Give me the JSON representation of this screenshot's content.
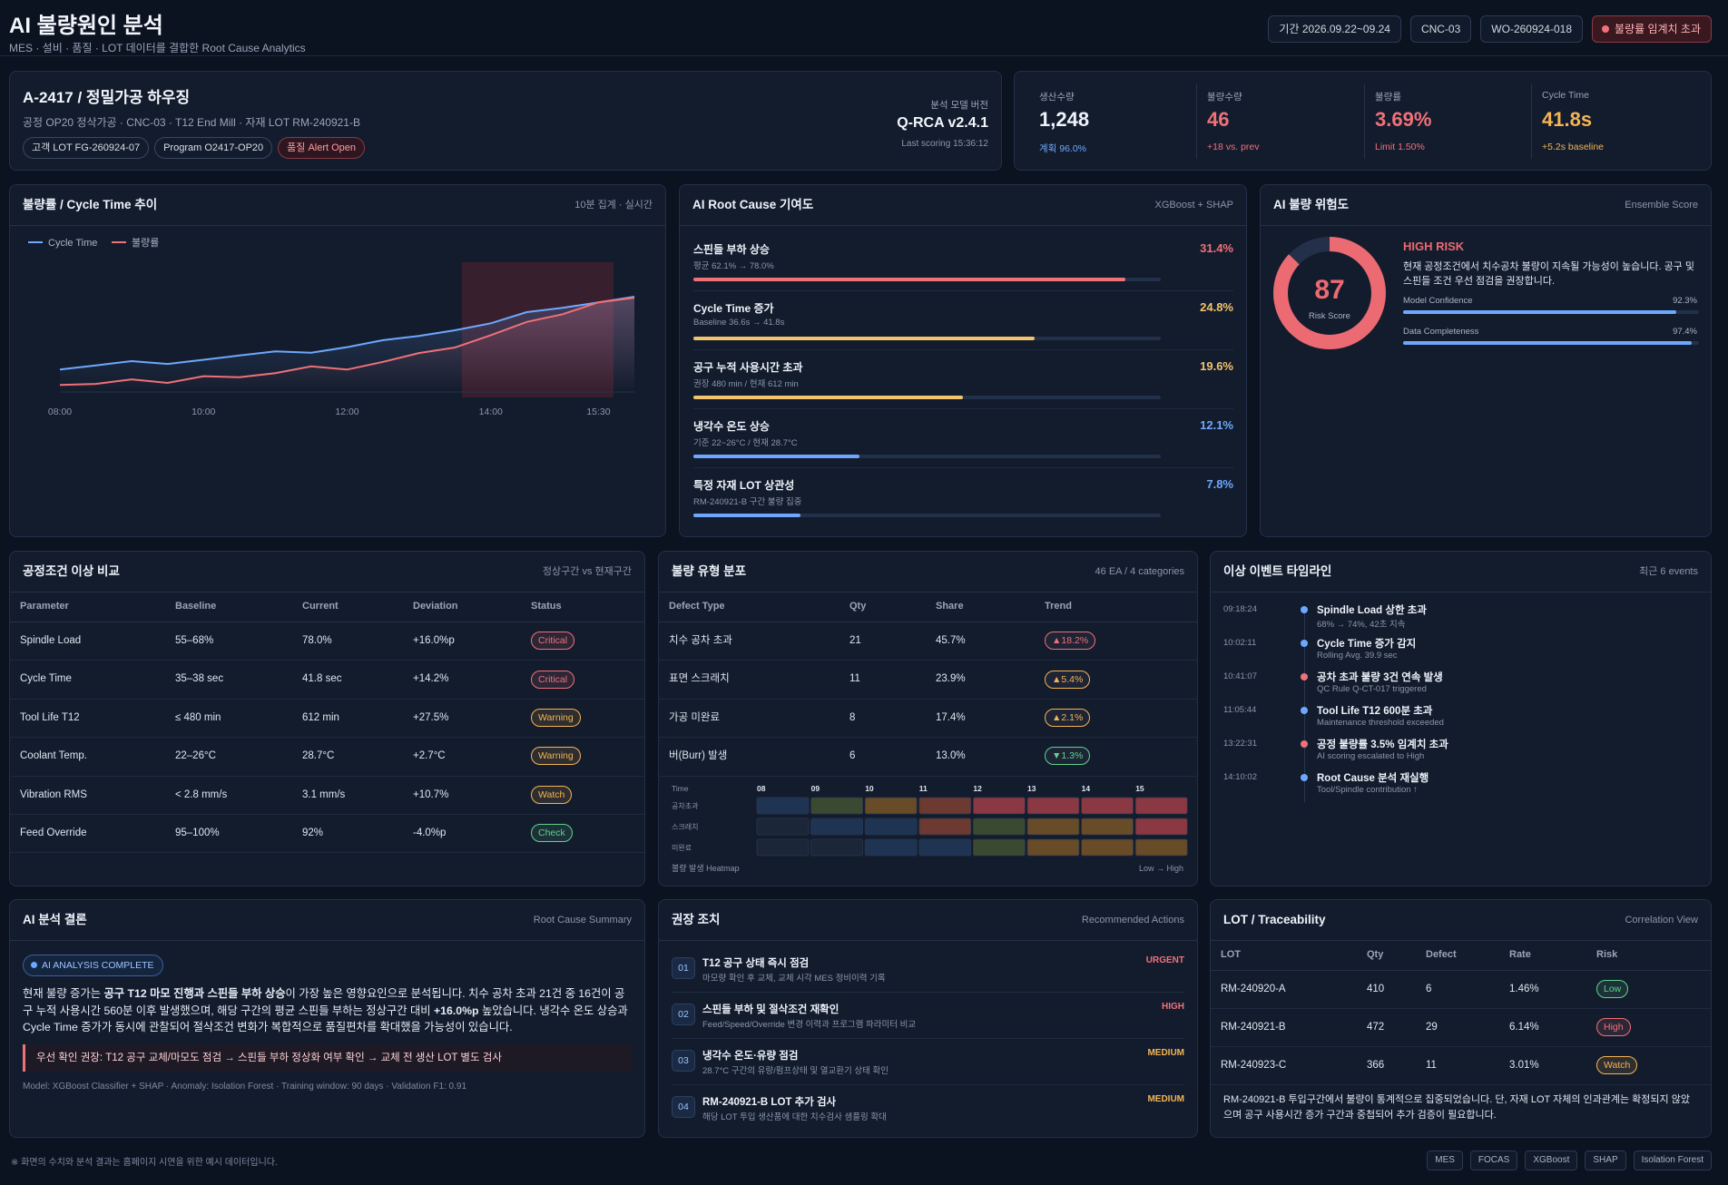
{
  "header": {
    "title": "AI 불량원인 분석",
    "subtitle": "MES · 설비 · 품질 · LOT 데이터를 결합한 Root Cause Analytics",
    "chips": [
      "기간 2026.09.22~09.24",
      "CNC-03",
      "WO-260924-018"
    ],
    "alert": "불량률 임계치 초과"
  },
  "product": {
    "title": "A-2417 / 정밀가공 하우징",
    "meta": "공정 OP20 정삭가공 · CNC-03 · T12 End Mill · 자재 LOT RM-240921-B",
    "tags": [
      "고객 LOT FG-260924-07",
      "Program O2417-OP20"
    ],
    "alert_tag": "품질 Alert Open",
    "model_label": "분석 모델 버전",
    "model": "Q-RCA v2.4.1",
    "scoring": "Last scoring 15:36:12"
  },
  "kpis": [
    {
      "label": "생산수량",
      "value": "1,248",
      "note": "계획 96.0%",
      "value_color": "#eef3fb",
      "note_color": "#6ea8fe"
    },
    {
      "label": "불량수량",
      "value": "46",
      "note": "+18 vs. prev",
      "value_color": "#f07178",
      "note_color": "#f07178"
    },
    {
      "label": "불량률",
      "value": "3.69%",
      "note": "Limit 1.50%",
      "value_color": "#f07178",
      "note_color": "#f07178"
    },
    {
      "label": "Cycle Time",
      "value": "41.8s",
      "note": "+5.2s baseline",
      "value_color": "#f5b453",
      "note_color": "#f5b453"
    }
  ],
  "chart_data": [
    {
      "type": "line",
      "title": "불량률 / Cycle Time 추이",
      "subtitle": "10분 집계 · 실시간",
      "categories": [
        "08:00",
        null,
        null,
        null,
        "10:00",
        null,
        null,
        null,
        "12:00",
        null,
        null,
        null,
        "14:00",
        null,
        null,
        "15:30",
        null
      ],
      "series": [
        {
          "name": "Cycle Time",
          "color": "#6ea8fe",
          "values": [
            36.6,
            36.9,
            37.2,
            37.0,
            37.3,
            37.6,
            37.9,
            37.8,
            38.2,
            38.7,
            39.0,
            39.4,
            39.9,
            40.7,
            41.0,
            41.4,
            41.8
          ]
        },
        {
          "name": "불량률",
          "color": "#f07178",
          "axis": "y2",
          "values": [
            1.2,
            1.23,
            1.36,
            1.26,
            1.45,
            1.42,
            1.54,
            1.73,
            1.64,
            1.86,
            2.11,
            2.27,
            2.62,
            3.0,
            3.22,
            3.56,
            3.69
          ]
        }
      ],
      "ylim": [
        35,
        44
      ],
      "y2lim": [
        1,
        4.6
      ],
      "legend": "top-left"
    },
    {
      "type": "bar",
      "orientation": "horizontal",
      "title": "AI Root Cause 기여도",
      "subtitle": "XGBoost + SHAP",
      "categories": [
        "스핀들 부하 상승",
        "Cycle Time 증가",
        "공구 누적 사용시간 초과",
        "냉각수 온도 상승",
        "특정 자재 LOT 상관성"
      ],
      "details": [
        "평균 62.1% → 78.0%",
        "Baseline 36.6s → 41.8s",
        "권장 480 min / 현재 612 min",
        "기준 22~26°C / 현재 28.7°C",
        "RM-240921-B 구간 불량 집중"
      ],
      "values": [
        31.4,
        24.8,
        19.6,
        12.1,
        7.8
      ],
      "value_labels": [
        "31.4%",
        "24.8%",
        "19.6%",
        "12.1%",
        "7.8%"
      ],
      "colors": [
        "#f07178",
        "#f2c46d",
        "#f2c46d",
        "#6ea8fe",
        "#6ea8fe"
      ],
      "xlim": [
        0,
        34
      ]
    },
    {
      "type": "gauge",
      "title": "AI 불량 위험도",
      "subtitle": "Ensemble Score",
      "value": 87,
      "label": "Risk Score",
      "ylim": [
        0,
        100
      ],
      "color": "#ec6a72",
      "level": "HIGH RISK",
      "description": "현재 공정조건에서 치수공차 불량이 지속될 가능성이 높습니다. 공구 및 스핀들 조건 우선 점검을 권장합니다.",
      "categories": [
        "Model Confidence",
        "Data Completeness"
      ],
      "values": [
        92.3,
        97.4
      ],
      "value_labels": [
        "92.3%",
        "97.4%"
      ],
      "xlim": [
        0,
        100
      ],
      "bar_color": "#6ea8fe"
    },
    {
      "type": "heatmap",
      "x_label": "Time",
      "categories": [
        "08",
        "09",
        "10",
        "11",
        "12",
        "13",
        "14",
        "15"
      ],
      "rows": [
        "공차초과",
        "스크래치",
        "미완료"
      ],
      "values": [
        [
          1,
          2,
          3,
          4,
          5,
          5,
          5,
          5
        ],
        [
          0,
          1,
          1,
          4,
          2,
          3,
          3,
          5
        ],
        [
          0,
          0,
          1,
          1,
          2,
          3,
          3,
          3
        ]
      ],
      "colors": [
        "#1b2638",
        "#1e3452",
        "#394a30",
        "#684b27",
        "#6c3a31",
        "#8a3841"
      ],
      "caption": "불량 발생 Heatmap",
      "scale_label": "Low → High"
    }
  ],
  "process": {
    "title": "공정조건 이상 비교",
    "note": "정상구간 vs 현재구간",
    "columns": [
      "Parameter",
      "Baseline",
      "Current",
      "Deviation",
      "Status"
    ],
    "rows": [
      [
        "Spindle Load",
        "55–68%",
        "78.0%",
        "+16.0%p",
        "Critical"
      ],
      [
        "Cycle Time",
        "35–38 sec",
        "41.8 sec",
        "+14.2%",
        "Critical"
      ],
      [
        "Tool Life T12",
        "≤ 480 min",
        "612 min",
        "+27.5%",
        "Warning"
      ],
      [
        "Coolant Temp.",
        "22–26°C",
        "28.7°C",
        "+2.7°C",
        "Warning"
      ],
      [
        "Vibration RMS",
        "< 2.8 mm/s",
        "3.1 mm/s",
        "+10.7%",
        "Watch"
      ],
      [
        "Feed Override",
        "95–100%",
        "92%",
        "-4.0%p",
        "Check"
      ]
    ]
  },
  "defects": {
    "title": "불량 유형 분포",
    "note": "46 EA / 4 categories",
    "columns": [
      "Defect Type",
      "Qty",
      "Share",
      "Trend"
    ],
    "rows": [
      [
        "치수 공차 초과",
        "21",
        "45.7%",
        "▲18.2%"
      ],
      [
        "표면 스크래치",
        "11",
        "23.9%",
        "▲5.4%"
      ],
      [
        "가공 미완료",
        "8",
        "17.4%",
        "▲2.1%"
      ],
      [
        "버(Burr) 발생",
        "6",
        "13.0%",
        "▼1.3%"
      ]
    ],
    "trend_colors": [
      "#f07178",
      "#f5b453",
      "#f5b453",
      "#5fd38d"
    ]
  },
  "timeline": {
    "title": "이상 이벤트 타임라인",
    "note": "최근 6 events",
    "events": [
      {
        "time": "09:18:24",
        "title": "Spindle Load 상한 초과",
        "detail": "68% → 74%, 42초 지속",
        "color": "#6ea8fe"
      },
      {
        "time": "10:02:11",
        "title": "Cycle Time 증가 감지",
        "detail": "Rolling Avg. 39.9 sec",
        "color": "#6ea8fe"
      },
      {
        "time": "10:41:07",
        "title": "공차 초과 불량 3건 연속 발생",
        "detail": "QC Rule Q-CT-017 triggered",
        "color": "#f07178"
      },
      {
        "time": "11:05:44",
        "title": "Tool Life T12 600분 초과",
        "detail": "Maintenance threshold exceeded",
        "color": "#6ea8fe"
      },
      {
        "time": "13:22:31",
        "title": "공정 불량률 3.5% 임계치 초과",
        "detail": "AI scoring escalated to High",
        "color": "#f07178"
      },
      {
        "time": "14:10:02",
        "title": "Root Cause 분석 재실행",
        "detail": "Tool/Spindle contribution ↑",
        "color": "#6ea8fe"
      }
    ]
  },
  "conclusion": {
    "title": "AI 분석 결론",
    "note": "Root Cause Summary",
    "badge": "AI ANALYSIS COMPLETE",
    "body": [
      "현재 불량 증가는 ",
      "공구 T12 마모 진행과 스핀들 부하 상승",
      "이 가장 높은 영향요인으로 분석됩니다. 치수 공차 초과 21건 중 16건이 공구 누적 사용시간 560분 이후 발생했으며, 해당 구간의 평균 스핀들 부하는 정상구간 대비 ",
      "+16.0%p",
      " 높았습니다. 냉각수 온도 상승과 Cycle Time 증가가 동시에 관찰되어 절삭조건 변화가 복합적으로 품질편차를 확대했을 가능성이 있습니다."
    ],
    "recommend": "우선 확인 권장: T12 공구 교체/마모도 점검 → 스핀들 부하 정상화 여부 확인 → 교체 전 생산 LOT 별도 검사",
    "footer": "Model: XGBoost Classifier + SHAP · Anomaly: Isolation Forest · Training window: 90 days · Validation F1: 0.91"
  },
  "actions": {
    "title": "권장 조치",
    "note": "Recommended Actions",
    "items": [
      {
        "no": "01",
        "title": "T12 공구 상태 즉시 점검",
        "detail": "마모량 확인 후 교체, 교체 시각 MES 정비이력 기록",
        "priority": "URGENT"
      },
      {
        "no": "02",
        "title": "스핀들 부하 및 절삭조건 재확인",
        "detail": "Feed/Speed/Override 변경 이력과 프로그램 파라미터 비교",
        "priority": "HIGH"
      },
      {
        "no": "03",
        "title": "냉각수 온도·유량 점검",
        "detail": "28.7°C 구간의 유량/펌프상태 및 열교환기 상태 확인",
        "priority": "MEDIUM"
      },
      {
        "no": "04",
        "title": "RM-240921-B LOT 추가 검사",
        "detail": "해당 LOT 투입 생산품에 대한 치수검사 샘플링 확대",
        "priority": "MEDIUM"
      }
    ]
  },
  "lots": {
    "title": "LOT / Traceability",
    "note": "Correlation View",
    "columns": [
      "LOT",
      "Qty",
      "Defect",
      "Rate",
      "Risk"
    ],
    "rows": [
      [
        "RM-240920-A",
        "410",
        "6",
        "1.46%",
        "Low"
      ],
      [
        "RM-240921-B",
        "472",
        "29",
        "6.14%",
        "High"
      ],
      [
        "RM-240923-C",
        "366",
        "11",
        "3.01%",
        "Watch"
      ]
    ],
    "summary": "RM-240921-B 투입구간에서 불량이 통계적으로 집중되었습니다. 단, 자재 LOT 자체의 인과관계는 확정되지 않았으며 공구 사용시간 증가 구간과 중첩되어 추가 검증이 필요합니다."
  },
  "footer": {
    "note": "※ 화면의 수치와 분석 결과는 홈페이지 시연을 위한 예시 데이터입니다.",
    "badges": [
      "MES",
      "FOCAS",
      "XGBoost",
      "SHAP",
      "Isolation Forest"
    ]
  }
}
